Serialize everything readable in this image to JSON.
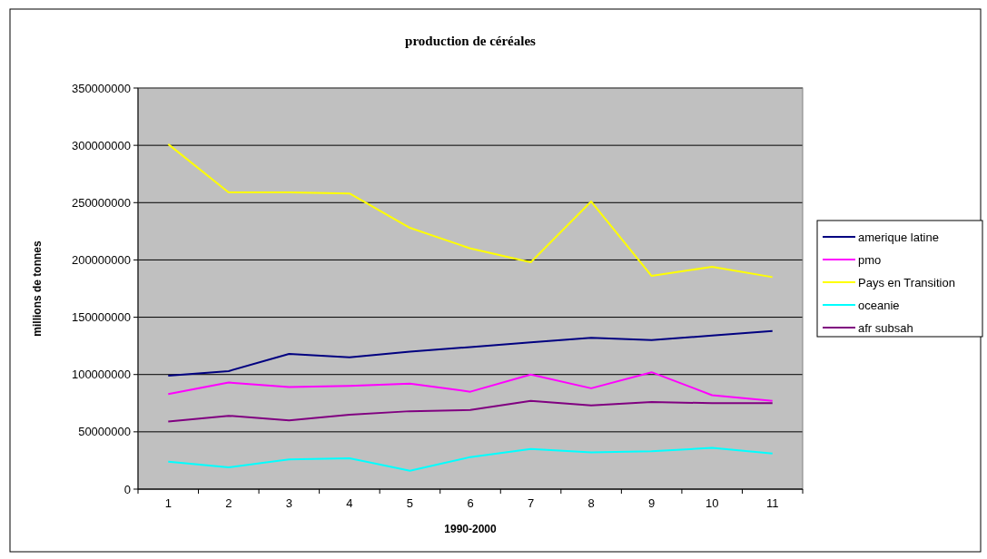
{
  "chart_data": {
    "type": "line",
    "title": "production de céréales",
    "xlabel": "1990-2000",
    "ylabel": "millions de tonnes",
    "categories": [
      "1",
      "2",
      "3",
      "4",
      "5",
      "6",
      "7",
      "8",
      "9",
      "10",
      "11"
    ],
    "series": [
      {
        "name": "amerique latine",
        "color": "#000080",
        "values": [
          99000000,
          103000000,
          118000000,
          115000000,
          120000000,
          124000000,
          128000000,
          132000000,
          130000000,
          134000000,
          138000000
        ]
      },
      {
        "name": "pmo",
        "color": "#ff00ff",
        "values": [
          83000000,
          93000000,
          89000000,
          90000000,
          92000000,
          85000000,
          100000000,
          88000000,
          102000000,
          82000000,
          77000000
        ]
      },
      {
        "name": "Pays en Transition",
        "color": "#ffff00",
        "values": [
          301000000,
          259000000,
          259000000,
          258000000,
          228000000,
          210000000,
          198000000,
          251000000,
          186000000,
          194000000,
          185000000
        ]
      },
      {
        "name": "oceanie",
        "color": "#00ffff",
        "values": [
          24000000,
          19000000,
          26000000,
          27000000,
          16000000,
          28000000,
          35000000,
          32000000,
          33000000,
          36000000,
          31000000
        ]
      },
      {
        "name": "afr subsah",
        "color": "#800080",
        "values": [
          59000000,
          64000000,
          60000000,
          65000000,
          68000000,
          69000000,
          77000000,
          73000000,
          76000000,
          75000000,
          75000000
        ]
      }
    ],
    "ylim": [
      0,
      350000000
    ],
    "yticks": [
      0,
      50000000,
      100000000,
      150000000,
      200000000,
      250000000,
      300000000,
      350000000
    ],
    "grid": "y",
    "legend": "right",
    "line_style": "solid"
  }
}
